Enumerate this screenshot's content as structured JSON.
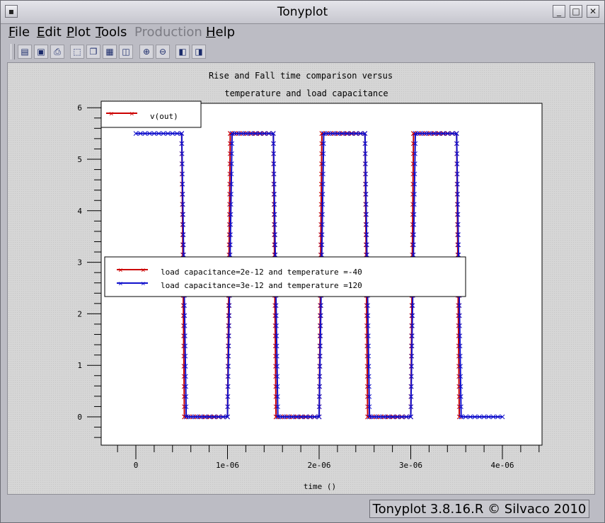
{
  "window": {
    "title": "Tonyplot",
    "system_icon": "window-menu-icon"
  },
  "menubar": {
    "items": [
      {
        "mnemonic": "F",
        "rest": "ile",
        "enabled": true
      },
      {
        "mnemonic": "E",
        "rest": "dit",
        "enabled": true
      },
      {
        "mnemonic": "P",
        "rest": "lot",
        "enabled": true
      },
      {
        "mnemonic": "T",
        "rest": "ools",
        "enabled": true
      },
      {
        "mnemonic": "",
        "rest": "Production",
        "enabled": false
      },
      {
        "mnemonic": "H",
        "rest": "elp",
        "enabled": true
      }
    ]
  },
  "toolbar": {
    "icons": [
      "open-file-icon",
      "save-file-icon",
      "print-icon",
      "select-region-icon",
      "copy-plot-icon",
      "paste-plot-icon",
      "overlay-plot-icon",
      "zoom-in-icon",
      "zoom-out-icon",
      "previous-view-icon",
      "next-view-icon"
    ]
  },
  "chart_data": {
    "type": "line",
    "title_lines": [
      "Rise and Fall time comparison versus",
      "temperature and load capacitance"
    ],
    "xlabel": "time ()",
    "ylabel": "",
    "xlim": [
      -2.5e-07,
      4.4e-06
    ],
    "ylim": [
      -0.5,
      6.1
    ],
    "x_ticks": [
      {
        "value": 0,
        "label": "0"
      },
      {
        "value": 1e-06,
        "label": "1e-06"
      },
      {
        "value": 2e-06,
        "label": "2e-06"
      },
      {
        "value": 3e-06,
        "label": "3e-06"
      },
      {
        "value": 4e-06,
        "label": "4e-06"
      }
    ],
    "y_ticks": [
      {
        "value": 0,
        "label": "0"
      },
      {
        "value": 1,
        "label": "1"
      },
      {
        "value": 2,
        "label": "2"
      },
      {
        "value": 3,
        "label": "3"
      },
      {
        "value": 4,
        "label": "4"
      },
      {
        "value": 5,
        "label": "5"
      },
      {
        "value": 6,
        "label": "6"
      }
    ],
    "grid": false,
    "quantity_legend": {
      "label": "v(out)",
      "color": "#cc0000",
      "placement": "top-left"
    },
    "series_legend_placement": "center-left",
    "series": [
      {
        "name": "load capacitance=2e-12 and temperature =-40",
        "color": "#cc0000",
        "x": [
          5e-07,
          5.3e-07,
          1e-06,
          1.03e-06,
          1.5e-06,
          1.53e-06,
          2e-06,
          2.03e-06,
          2.5e-06,
          2.53e-06,
          3e-06,
          3.03e-06,
          3.5e-06,
          3.53e-06
        ],
        "y": [
          5.5,
          0.0,
          0.0,
          5.5,
          5.5,
          0.0,
          0.0,
          5.5,
          5.5,
          0.0,
          0.0,
          5.5,
          5.5,
          0.0
        ]
      },
      {
        "name": "load capacitance=3e-12 and temperature =120",
        "color": "#1010cc",
        "x": [
          0.0,
          5e-07,
          5.5e-07,
          1e-06,
          1.05e-06,
          1.5e-06,
          1.55e-06,
          2e-06,
          2.05e-06,
          2.5e-06,
          2.55e-06,
          3e-06,
          3.05e-06,
          3.5e-06,
          3.55e-06,
          4e-06
        ],
        "y": [
          5.5,
          5.5,
          0.0,
          0.0,
          5.5,
          5.5,
          0.0,
          0.0,
          5.5,
          5.5,
          0.0,
          0.0,
          5.5,
          5.5,
          0.0,
          0.0
        ]
      }
    ]
  },
  "statusbar": {
    "text": "Tonyplot 3.8.16.R © Silvaco 2010"
  }
}
